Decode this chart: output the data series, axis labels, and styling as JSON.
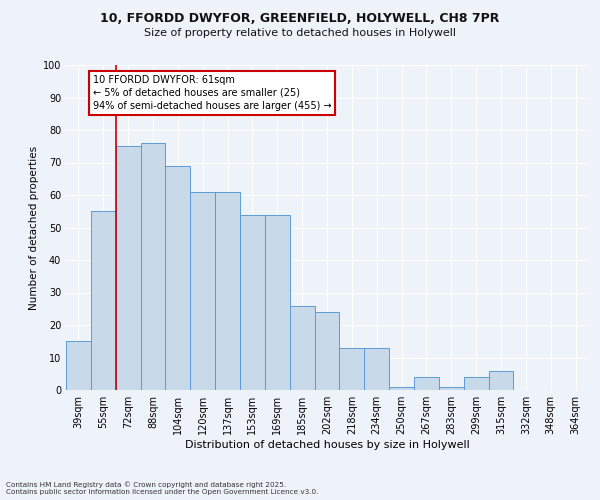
{
  "title_line1": "10, FFORDD DWYFOR, GREENFIELD, HOLYWELL, CH8 7PR",
  "title_line2": "Size of property relative to detached houses in Holywell",
  "xlabel": "Distribution of detached houses by size in Holywell",
  "ylabel": "Number of detached properties",
  "categories": [
    "39sqm",
    "55sqm",
    "72sqm",
    "88sqm",
    "104sqm",
    "120sqm",
    "137sqm",
    "153sqm",
    "169sqm",
    "185sqm",
    "202sqm",
    "218sqm",
    "234sqm",
    "250sqm",
    "267sqm",
    "283sqm",
    "299sqm",
    "315sqm",
    "332sqm",
    "348sqm",
    "364sqm"
  ],
  "values": [
    15,
    55,
    75,
    76,
    69,
    61,
    61,
    54,
    54,
    26,
    24,
    13,
    13,
    1,
    4,
    1,
    4,
    6,
    0,
    0,
    0
  ],
  "bar_color": "#c8d9ea",
  "bar_edge_color": "#5b9bd5",
  "annotation_text": "10 FFORDD DWYFOR: 61sqm\n← 5% of detached houses are smaller (25)\n94% of semi-detached houses are larger (455) →",
  "annotation_box_color": "#ffffff",
  "annotation_box_edge_color": "#cc0000",
  "ref_line_color": "#cc0000",
  "background_color": "#eef2f9",
  "grid_color": "#ffffff",
  "ylim": [
    0,
    100
  ],
  "footer": "Contains HM Land Registry data © Crown copyright and database right 2025.\nContains public sector information licensed under the Open Government Licence v3.0."
}
